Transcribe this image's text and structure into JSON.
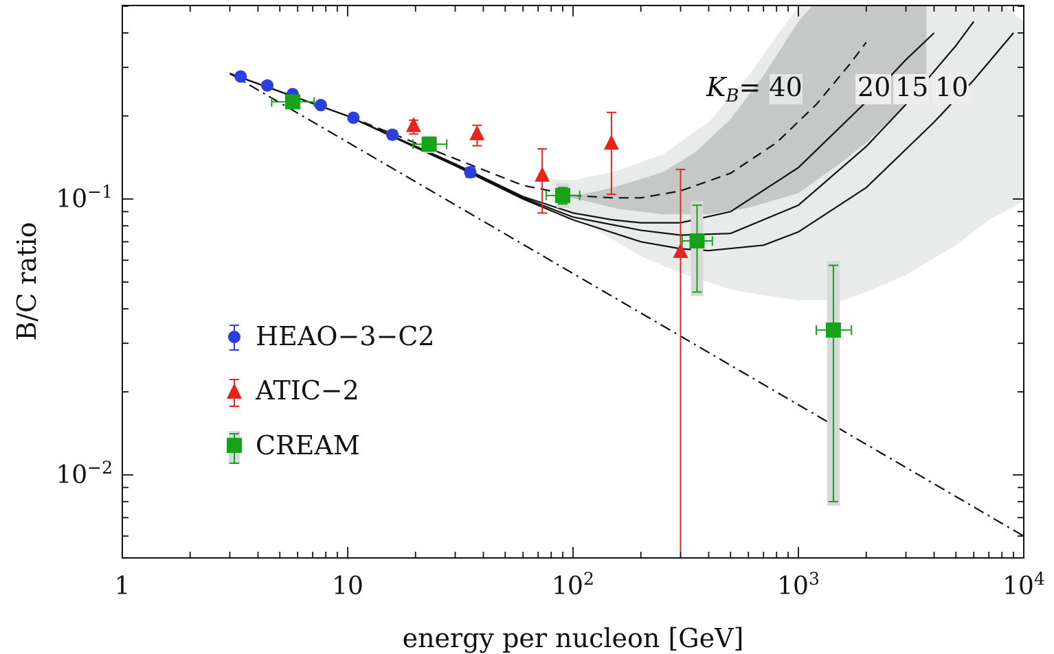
{
  "chart_data": {
    "type": "scatter",
    "xlabel": "energy per nucleon [GeV]",
    "ylabel": "B/C ratio",
    "xscale": "log",
    "yscale": "log",
    "xlim": [
      1,
      10000
    ],
    "ylim": [
      0.005,
      0.6
    ],
    "grid": false,
    "legend_position": "left",
    "x_ticks": [
      {
        "value": 1,
        "base": "1",
        "exp": ""
      },
      {
        "value": 10,
        "base": "10",
        "exp": ""
      },
      {
        "value": 100,
        "base": "10",
        "exp": "2"
      },
      {
        "value": 1000,
        "base": "10",
        "exp": "3"
      },
      {
        "value": 10000,
        "base": "10",
        "exp": "4"
      }
    ],
    "y_ticks": [
      {
        "value": 0.1,
        "base": "10",
        "exp": "−1"
      },
      {
        "value": 0.01,
        "base": "10",
        "exp": "−2"
      }
    ],
    "series": [
      {
        "name": "HEAO−3−C2",
        "color": "#2b3fe0",
        "marker": "circle",
        "points": [
          {
            "x": 3.35,
            "y": 0.278,
            "ylo": 0.272,
            "yhi": 0.284
          },
          {
            "x": 4.4,
            "y": 0.258,
            "ylo": 0.252,
            "yhi": 0.264
          },
          {
            "x": 5.7,
            "y": 0.24,
            "ylo": 0.234,
            "yhi": 0.246
          },
          {
            "x": 7.6,
            "y": 0.219,
            "ylo": 0.213,
            "yhi": 0.225
          },
          {
            "x": 10.6,
            "y": 0.197,
            "ylo": 0.191,
            "yhi": 0.203
          },
          {
            "x": 15.8,
            "y": 0.171,
            "ylo": 0.165,
            "yhi": 0.177
          },
          {
            "x": 35,
            "y": 0.125,
            "ylo": 0.12,
            "yhi": 0.13
          }
        ]
      },
      {
        "name": "ATIC−2",
        "color": "#e8231c",
        "marker": "triangle",
        "points": [
          {
            "x": 19.6,
            "y": 0.183,
            "ylo": 0.172,
            "yhi": 0.193
          },
          {
            "x": 37.5,
            "y": 0.171,
            "ylo": 0.156,
            "yhi": 0.185
          },
          {
            "x": 73,
            "y": 0.121,
            "ylo": 0.089,
            "yhi": 0.152
          },
          {
            "x": 148,
            "y": 0.158,
            "ylo": 0.104,
            "yhi": 0.206
          },
          {
            "x": 300,
            "y": 0.064,
            "ylo": 0.005,
            "yhi": 0.128
          }
        ]
      },
      {
        "name": "CREAM",
        "color": "#17a317",
        "marker": "square",
        "points": [
          {
            "x": 5.7,
            "y": 0.225,
            "ylo": 0.221,
            "yhi": 0.229,
            "xlo": 4.6,
            "xhi": 7.1
          },
          {
            "x": 23,
            "y": 0.158,
            "ylo": 0.152,
            "yhi": 0.164,
            "xlo": 19.5,
            "xhi": 27.5
          },
          {
            "x": 90,
            "y": 0.103,
            "ylo": 0.096,
            "yhi": 0.11,
            "xlo": 76,
            "xhi": 107
          },
          {
            "x": 355,
            "y": 0.0705,
            "ylo": 0.046,
            "yhi": 0.095,
            "xlo": 305,
            "xhi": 415
          },
          {
            "x": 1430,
            "y": 0.0335,
            "ylo": 0.008,
            "yhi": 0.0575,
            "xlo": 1200,
            "xhi": 1720
          }
        ]
      }
    ],
    "model_curves": [
      {
        "label": "40",
        "style": "dashed",
        "points": [
          [
            3,
            0.285
          ],
          [
            10,
            0.2
          ],
          [
            30,
            0.14
          ],
          [
            60,
            0.112
          ],
          [
            100,
            0.103
          ],
          [
            150,
            0.101
          ],
          [
            200,
            0.101
          ],
          [
            300,
            0.107
          ],
          [
            500,
            0.124
          ],
          [
            800,
            0.16
          ],
          [
            1200,
            0.22
          ],
          [
            1700,
            0.31
          ],
          [
            2000,
            0.37
          ]
        ]
      },
      {
        "label": "20",
        "style": "solid",
        "points": [
          [
            3,
            0.285
          ],
          [
            10,
            0.2
          ],
          [
            30,
            0.134
          ],
          [
            60,
            0.102
          ],
          [
            100,
            0.089
          ],
          [
            150,
            0.084
          ],
          [
            200,
            0.082
          ],
          [
            300,
            0.082
          ],
          [
            500,
            0.09
          ],
          [
            1000,
            0.13
          ],
          [
            2000,
            0.225
          ],
          [
            3000,
            0.32
          ],
          [
            4000,
            0.4
          ]
        ]
      },
      {
        "label": "15",
        "style": "solid",
        "points": [
          [
            3,
            0.285
          ],
          [
            10,
            0.2
          ],
          [
            30,
            0.133
          ],
          [
            60,
            0.101
          ],
          [
            100,
            0.086
          ],
          [
            200,
            0.077
          ],
          [
            300,
            0.074
          ],
          [
            500,
            0.075
          ],
          [
            1000,
            0.095
          ],
          [
            2000,
            0.155
          ],
          [
            3000,
            0.22
          ],
          [
            5000,
            0.36
          ],
          [
            6000,
            0.44
          ]
        ]
      },
      {
        "label": "10",
        "style": "solid",
        "points": [
          [
            3,
            0.285
          ],
          [
            10,
            0.2
          ],
          [
            30,
            0.132
          ],
          [
            60,
            0.1
          ],
          [
            100,
            0.084
          ],
          [
            200,
            0.07
          ],
          [
            300,
            0.066
          ],
          [
            400,
            0.065
          ],
          [
            700,
            0.068
          ],
          [
            1000,
            0.076
          ],
          [
            2000,
            0.11
          ],
          [
            4000,
            0.19
          ],
          [
            6000,
            0.27
          ],
          [
            9000,
            0.4
          ]
        ]
      },
      {
        "label": "",
        "style": "dashdot",
        "points": [
          [
            3,
            0.285
          ],
          [
            10000,
            0.006
          ]
        ]
      }
    ],
    "bands": [
      {
        "name": "outer",
        "color": "#e9ebeb",
        "lower": [
          [
            80,
            0.098
          ],
          [
            100,
            0.087
          ],
          [
            200,
            0.062
          ],
          [
            300,
            0.054
          ],
          [
            500,
            0.047
          ],
          [
            800,
            0.044
          ],
          [
            1000,
            0.043
          ],
          [
            1600,
            0.043
          ],
          [
            2000,
            0.046
          ],
          [
            3000,
            0.053
          ],
          [
            5000,
            0.068
          ],
          [
            7000,
            0.084
          ],
          [
            10000,
            0.098
          ]
        ],
        "upper": [
          [
            10000,
            0.44
          ],
          [
            7000,
            0.56
          ],
          [
            4000,
            0.64
          ],
          [
            3000,
            0.64
          ],
          [
            2000,
            0.64
          ],
          [
            1500,
            0.64
          ],
          [
            1000,
            0.5
          ],
          [
            600,
            0.28
          ],
          [
            400,
            0.19
          ],
          [
            250,
            0.145
          ],
          [
            150,
            0.125
          ],
          [
            100,
            0.117
          ],
          [
            80,
            0.118
          ]
        ]
      },
      {
        "name": "inner",
        "color": "#c6c7c7",
        "lower": [
          [
            90,
            0.102
          ],
          [
            110,
            0.099
          ],
          [
            160,
            0.092
          ],
          [
            250,
            0.088
          ],
          [
            400,
            0.088
          ],
          [
            600,
            0.093
          ],
          [
            1000,
            0.105
          ],
          [
            1500,
            0.133
          ],
          [
            2000,
            0.16
          ],
          [
            3000,
            0.22
          ],
          [
            3500,
            0.25
          ],
          [
            3700,
            0.26
          ]
        ],
        "upper": [
          [
            3700,
            0.64
          ],
          [
            3000,
            0.64
          ],
          [
            2000,
            0.64
          ],
          [
            1500,
            0.64
          ],
          [
            1000,
            0.44
          ],
          [
            700,
            0.28
          ],
          [
            500,
            0.195
          ],
          [
            350,
            0.148
          ],
          [
            250,
            0.125
          ],
          [
            150,
            0.11
          ],
          [
            110,
            0.104
          ],
          [
            90,
            0.103
          ]
        ]
      }
    ],
    "annotations": {
      "kb_prefix": "K",
      "kb_sub": "B",
      "kb_equals": "= 40",
      "kb_values": [
        "20",
        "15",
        "10"
      ]
    }
  }
}
